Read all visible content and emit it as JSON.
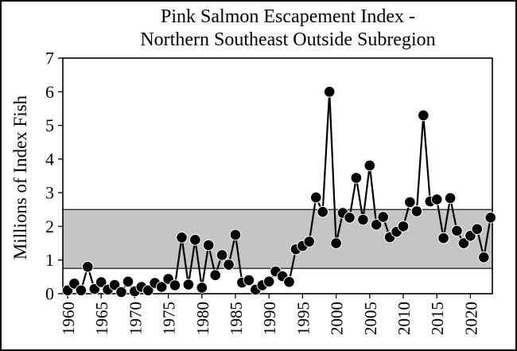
{
  "figure": {
    "title_line1": "Pink Salmon Escapement Index -",
    "title_line2": "Northern Southeast Outside Subregion",
    "y_axis_title": "Millions of Index Fish"
  },
  "chart_data": {
    "type": "line",
    "title": "Pink Salmon Escapement Index - Northern Southeast Outside Subregion",
    "xlabel": "",
    "ylabel": "Millions of Index Fish",
    "ylim": [
      0,
      7
    ],
    "y_ticks": [
      0,
      1,
      2,
      3,
      4,
      5,
      6,
      7
    ],
    "x_ticks": [
      1960,
      1965,
      1970,
      1975,
      1980,
      1985,
      1990,
      1995,
      2000,
      2005,
      2010,
      2015,
      2020
    ],
    "x_tick_rotation_deg": -90,
    "grid": false,
    "legend": "none",
    "marker": "filled-circle",
    "line_color": "#000000",
    "marker_color": "#000000",
    "plot_background": "#ffffff",
    "goal_band": {
      "lower": 0.75,
      "upper": 2.5,
      "fill_color": "#c5c5c5",
      "edge_color": "#1a1a1a"
    },
    "x": [
      1960,
      1961,
      1962,
      1963,
      1964,
      1965,
      1966,
      1967,
      1968,
      1969,
      1970,
      1971,
      1972,
      1973,
      1974,
      1975,
      1976,
      1977,
      1978,
      1979,
      1980,
      1981,
      1982,
      1983,
      1984,
      1985,
      1986,
      1987,
      1988,
      1989,
      1990,
      1991,
      1992,
      1993,
      1994,
      1995,
      1996,
      1997,
      1998,
      1999,
      2000,
      2001,
      2002,
      2003,
      2004,
      2005,
      2006,
      2007,
      2008,
      2009,
      2010,
      2011,
      2012,
      2013,
      2014,
      2015,
      2016,
      2017,
      2018,
      2019,
      2020,
      2021,
      2022,
      2023
    ],
    "y": [
      0.1,
      0.3,
      0.1,
      0.8,
      0.14,
      0.34,
      0.12,
      0.26,
      0.05,
      0.36,
      0.07,
      0.2,
      0.1,
      0.32,
      0.2,
      0.44,
      0.25,
      1.67,
      0.27,
      1.6,
      0.18,
      1.44,
      0.55,
      1.15,
      0.86,
      1.75,
      0.33,
      0.4,
      0.12,
      0.25,
      0.36,
      0.66,
      0.52,
      0.35,
      1.32,
      1.42,
      1.55,
      2.86,
      2.43,
      6.0,
      1.5,
      2.4,
      2.26,
      3.44,
      2.2,
      3.81,
      2.05,
      2.28,
      1.68,
      1.84,
      2.0,
      2.72,
      2.45,
      5.3,
      2.74,
      2.8,
      1.65,
      2.84,
      1.87,
      1.5,
      1.72,
      1.92,
      1.08,
      2.26
    ]
  }
}
